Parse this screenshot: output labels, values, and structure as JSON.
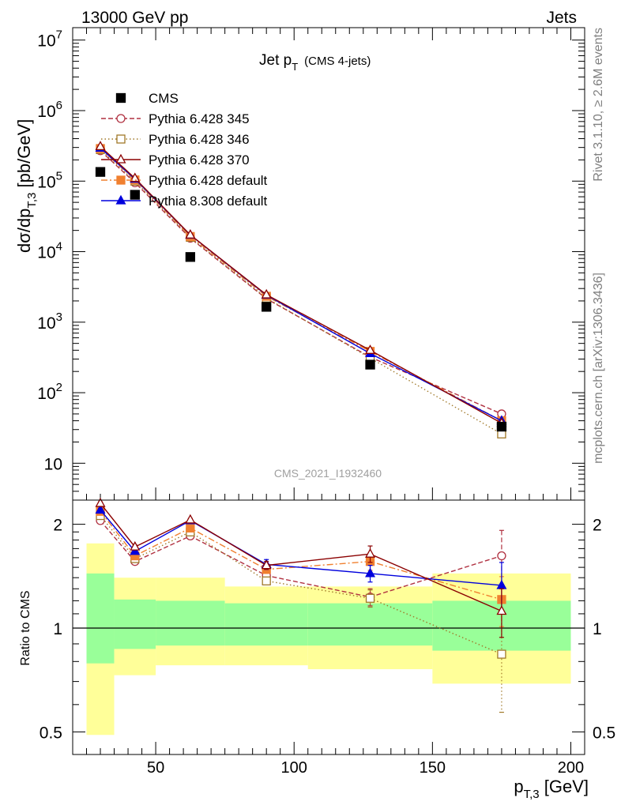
{
  "header": {
    "left": "13000 GeV pp",
    "right": "Jets"
  },
  "plot_title": {
    "main": "Jet p",
    "sub": "T",
    "extra": "(CMS 4-jets)"
  },
  "side_labels": {
    "rivet": "Rivet 3.1.10, ≥ 2.6M events",
    "mcplots": "mcplots.cern.ch [arXiv:1306.3436]"
  },
  "watermark": "CMS_2021_I1932460",
  "ylabel_main": {
    "prefix": "dσ/dp",
    "sub": "T,3",
    "suffix": " [pb/GeV]"
  },
  "ylabel_ratio": "Ratio to CMS",
  "xlabel": {
    "prefix": "p",
    "sub": "T,3",
    "suffix": " [GeV]"
  },
  "colors": {
    "cms": "#000000",
    "p345": "#b03040",
    "p346": "#a07828",
    "p370": "#8b0000",
    "p6def": "#f08030",
    "p8def": "#0000dd",
    "band_inner": "#99ff99",
    "band_outer": "#ffff99"
  },
  "chart_data": [
    {
      "type": "scatter",
      "title": "Jet pT (CMS 4-jets)",
      "xlabel": "pT,3 [GeV]",
      "ylabel": "dσ/dpT,3 [pb/GeV]",
      "yscale": "log",
      "ylim": [
        3,
        15000000
      ],
      "xlim": [
        20,
        205
      ],
      "y_ticks": [
        {
          "v": 10,
          "label": "10"
        },
        {
          "v": 100,
          "label": "10",
          "exp": "2"
        },
        {
          "v": 1000,
          "label": "10",
          "exp": "3"
        },
        {
          "v": 10000,
          "label": "10",
          "exp": "4"
        },
        {
          "v": 100000,
          "label": "10",
          "exp": "5"
        },
        {
          "v": 1000000,
          "label": "10",
          "exp": "6"
        },
        {
          "v": 10000000,
          "label": "10",
          "exp": "7"
        }
      ],
      "legend_position": "top-left",
      "series": [
        {
          "name": "CMS",
          "key": "cms",
          "marker": "square-filled",
          "dash": "none",
          "x": [
            30,
            42.5,
            62.5,
            90,
            127.5,
            175
          ],
          "y": [
            135000,
            64000,
            8400,
            1650,
            250,
            33
          ]
        },
        {
          "name": "Pythia 6.428 345",
          "key": "p345",
          "marker": "circle-open",
          "dash": "6,3",
          "x": [
            30,
            42.5,
            62.5,
            90,
            127.5,
            175
          ],
          "y": [
            270000,
            95000,
            15500,
            2150,
            320,
            50
          ]
        },
        {
          "name": "Pythia 6.428 346",
          "key": "p346",
          "marker": "square-open",
          "dash": "1.5,3",
          "x": [
            30,
            42.5,
            62.5,
            90,
            127.5,
            175
          ],
          "y": [
            280000,
            100000,
            16000,
            2200,
            310,
            26
          ]
        },
        {
          "name": "Pythia 6.428 370",
          "key": "p370",
          "marker": "triangle-open",
          "dash": "none",
          "x": [
            30,
            42.5,
            62.5,
            90,
            127.5,
            175
          ],
          "y": [
            310000,
            110000,
            17300,
            2450,
            400,
            37
          ]
        },
        {
          "name": "Pythia 6.428 default",
          "key": "p6def",
          "marker": "square-filled",
          "dash": "8,3,2,3",
          "x": [
            30,
            42.5,
            62.5,
            90,
            127.5,
            175
          ],
          "y": [
            290000,
            104000,
            16400,
            2330,
            385,
            40
          ]
        },
        {
          "name": "Pythia 8.308 default",
          "key": "p8def",
          "marker": "triangle-filled",
          "dash": "none",
          "x": [
            30,
            42.5,
            62.5,
            90,
            127.5,
            175
          ],
          "y": [
            295000,
            107000,
            17200,
            2420,
            360,
            40
          ]
        }
      ]
    },
    {
      "type": "scatter",
      "title": "",
      "xlabel": "pT,3 [GeV]",
      "ylabel": "Ratio to CMS",
      "yscale": "log",
      "ylim": [
        0.43,
        2.35
      ],
      "xlim": [
        20,
        205
      ],
      "y_ticks": [
        {
          "v": 0.5,
          "label": "0.5"
        },
        {
          "v": 1,
          "label": "1"
        },
        {
          "v": 2,
          "label": "2"
        }
      ],
      "x_ticks": [
        {
          "v": 50,
          "label": "50"
        },
        {
          "v": 100,
          "label": "100"
        },
        {
          "v": 150,
          "label": "150"
        },
        {
          "v": 200,
          "label": "200"
        }
      ],
      "reference_line": 1,
      "bands": [
        {
          "x0": 25,
          "x1": 35,
          "inner": [
            0.79,
            1.44
          ],
          "outer": [
            0.49,
            1.76
          ]
        },
        {
          "x0": 35,
          "x1": 50,
          "inner": [
            0.87,
            1.21
          ],
          "outer": [
            0.73,
            1.4
          ]
        },
        {
          "x0": 50,
          "x1": 75,
          "inner": [
            0.89,
            1.2
          ],
          "outer": [
            0.78,
            1.4
          ]
        },
        {
          "x0": 75,
          "x1": 105,
          "inner": [
            0.89,
            1.18
          ],
          "outer": [
            0.78,
            1.32
          ]
        },
        {
          "x0": 105,
          "x1": 150,
          "inner": [
            0.89,
            1.18
          ],
          "outer": [
            0.76,
            1.32
          ]
        },
        {
          "x0": 150,
          "x1": 200,
          "inner": [
            0.86,
            1.2
          ],
          "outer": [
            0.69,
            1.44
          ]
        }
      ],
      "series": [
        {
          "name": "Pythia 6.428 345",
          "key": "p345",
          "marker": "circle-open",
          "dash": "6,3",
          "x": [
            30,
            42.5,
            62.5,
            90,
            127.5,
            175
          ],
          "y": [
            2.05,
            1.56,
            1.85,
            1.42,
            1.23,
            1.62
          ],
          "err": [
            0.02,
            0.02,
            0.02,
            0.03,
            0.07,
            0.3
          ]
        },
        {
          "name": "Pythia 6.428 346",
          "key": "p346",
          "marker": "square-open",
          "dash": "1.5,3",
          "x": [
            30,
            42.5,
            62.5,
            90,
            127.5,
            175
          ],
          "y": [
            2.12,
            1.59,
            1.9,
            1.37,
            1.22,
            0.84
          ],
          "err": [
            0.02,
            0.02,
            0.02,
            0.03,
            0.07,
            0.27
          ]
        },
        {
          "name": "Pythia 6.428 370",
          "key": "p370",
          "marker": "triangle-open",
          "dash": "none",
          "x": [
            30,
            42.5,
            62.5,
            90,
            127.5,
            175
          ],
          "y": [
            2.3,
            1.72,
            2.06,
            1.52,
            1.64,
            1.12
          ],
          "err": [
            0.02,
            0.02,
            0.02,
            0.04,
            0.09,
            0.18
          ]
        },
        {
          "name": "Pythia 6.428 default",
          "key": "p6def",
          "marker": "square-filled",
          "dash": "8,3,2,3",
          "x": [
            30,
            42.5,
            62.5,
            90,
            127.5,
            175
          ],
          "y": [
            2.18,
            1.62,
            1.95,
            1.48,
            1.56,
            1.21
          ],
          "err": [
            0.02,
            0.02,
            0.02,
            0.04,
            0.09,
            0.2
          ]
        },
        {
          "name": "Pythia 8.308 default",
          "key": "p8def",
          "marker": "triangle-filled",
          "dash": "none",
          "x": [
            30,
            42.5,
            62.5,
            90,
            127.5,
            175
          ],
          "y": [
            2.2,
            1.67,
            2.05,
            1.53,
            1.44,
            1.33
          ],
          "err": [
            0.02,
            0.02,
            0.02,
            0.05,
            0.08,
            0.22
          ]
        }
      ]
    }
  ]
}
